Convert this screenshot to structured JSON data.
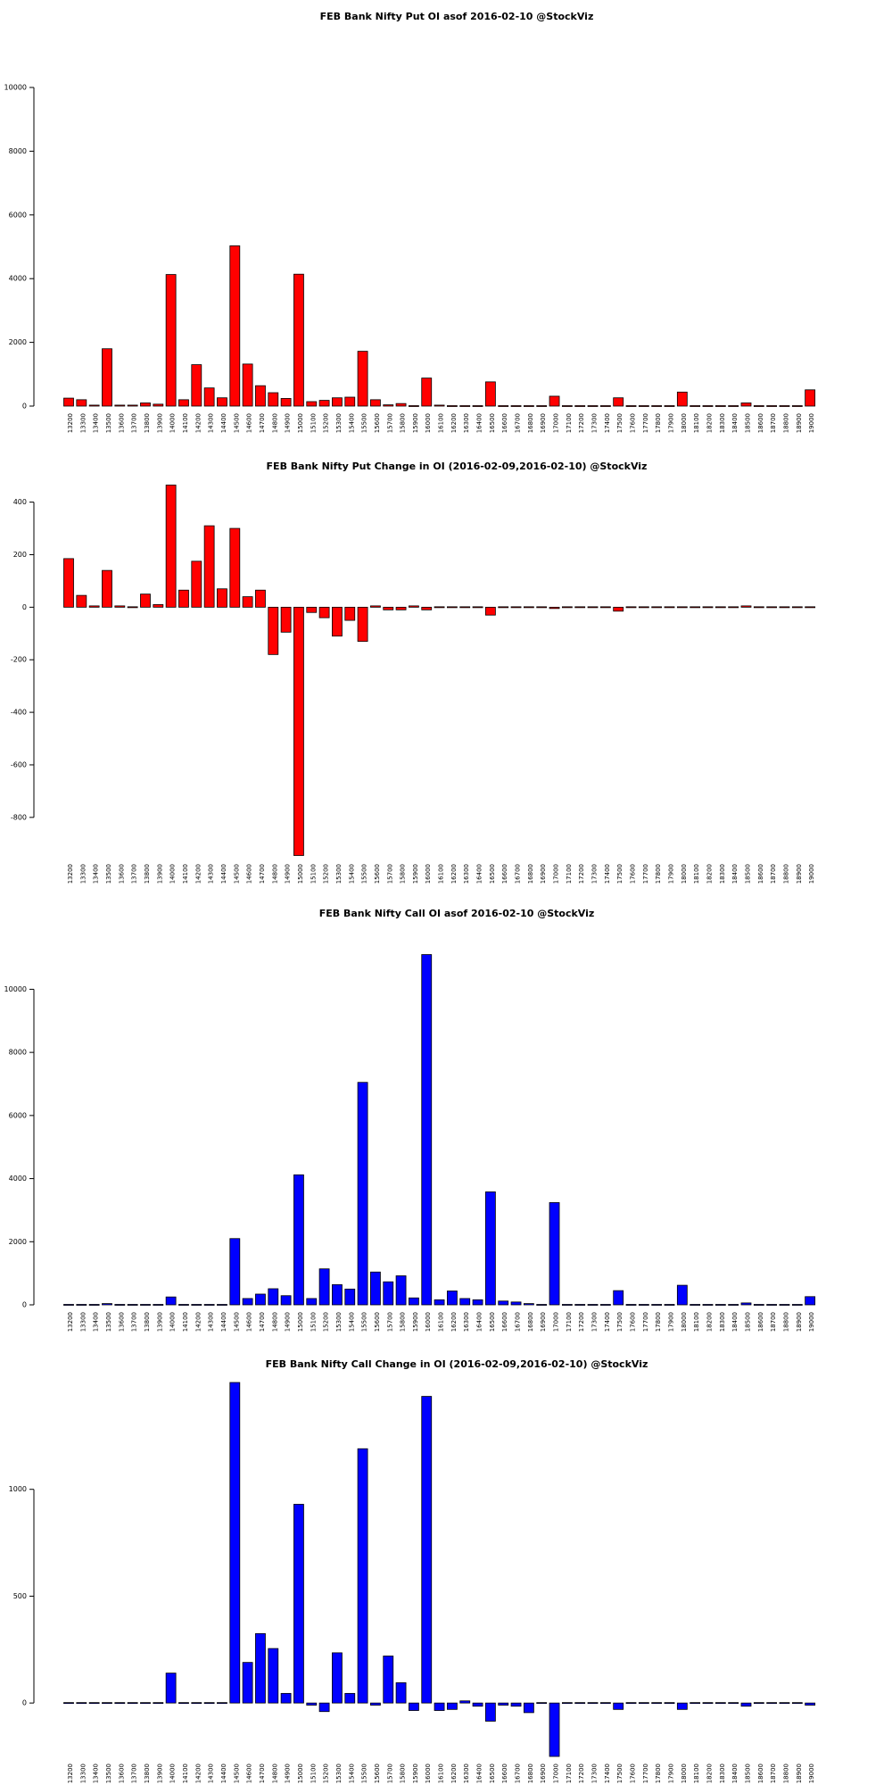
{
  "chart_data": [
    {
      "type": "bar",
      "title": "FEB Bank Nifty Put OI asof 2016-02-10 @StockViz",
      "xlabel": "",
      "ylabel": "",
      "color": "#ff0000",
      "ylim": [
        0,
        10000
      ],
      "yticks": [
        0,
        2000,
        4000,
        6000,
        8000,
        10000
      ],
      "categories": [
        "13200",
        "13300",
        "13400",
        "13500",
        "13600",
        "13700",
        "13800",
        "13900",
        "14000",
        "14100",
        "14200",
        "14300",
        "14400",
        "14500",
        "14600",
        "14700",
        "14800",
        "14900",
        "15000",
        "15100",
        "15200",
        "15300",
        "15400",
        "15500",
        "15600",
        "15700",
        "15800",
        "15900",
        "16000",
        "16100",
        "16200",
        "16300",
        "16400",
        "16500",
        "16600",
        "16700",
        "16800",
        "16900",
        "17000",
        "17100",
        "17200",
        "17300",
        "17400",
        "17500",
        "17600",
        "17700",
        "17800",
        "17900",
        "18000",
        "18100",
        "18200",
        "18300",
        "18400",
        "18500",
        "18600",
        "18700",
        "18800",
        "18900",
        "19000"
      ],
      "values": [
        250,
        200,
        30,
        1800,
        30,
        30,
        100,
        60,
        4130,
        200,
        1300,
        570,
        260,
        5030,
        1320,
        640,
        420,
        240,
        4140,
        140,
        180,
        260,
        280,
        1720,
        200,
        40,
        80,
        20,
        880,
        30,
        20,
        20,
        20,
        760,
        20,
        10,
        20,
        10,
        310,
        10,
        10,
        10,
        10,
        260,
        10,
        10,
        10,
        10,
        440,
        10,
        10,
        10,
        10,
        100,
        10,
        10,
        10,
        10,
        510
      ]
    },
    {
      "type": "bar",
      "title": "FEB Bank Nifty Put Change in OI (2016-02-09,2016-02-10) @StockViz",
      "xlabel": "",
      "ylabel": "",
      "color": "#ff0000",
      "ylim": [
        -950,
        470
      ],
      "yticks": [
        -800,
        -600,
        -400,
        -200,
        0,
        200,
        400
      ],
      "categories": [
        "13200",
        "13300",
        "13400",
        "13500",
        "13600",
        "13700",
        "13800",
        "13900",
        "14000",
        "14100",
        "14200",
        "14300",
        "14400",
        "14500",
        "14600",
        "14700",
        "14800",
        "14900",
        "15000",
        "15100",
        "15200",
        "15300",
        "15400",
        "15500",
        "15600",
        "15700",
        "15800",
        "15900",
        "16000",
        "16100",
        "16200",
        "16300",
        "16400",
        "16500",
        "16600",
        "16700",
        "16800",
        "16900",
        "17000",
        "17100",
        "17200",
        "17300",
        "17400",
        "17500",
        "17600",
        "17700",
        "17800",
        "17900",
        "18000",
        "18100",
        "18200",
        "18300",
        "18400",
        "18500",
        "18600",
        "18700",
        "18800",
        "18900",
        "19000"
      ],
      "values": [
        185,
        45,
        5,
        140,
        5,
        0,
        50,
        10,
        465,
        65,
        175,
        310,
        70,
        300,
        40,
        65,
        -180,
        -95,
        -945,
        -20,
        -40,
        -110,
        -50,
        -130,
        5,
        -10,
        -10,
        5,
        -10,
        0,
        0,
        0,
        0,
        -30,
        0,
        0,
        0,
        0,
        -5,
        0,
        0,
        0,
        0,
        -15,
        0,
        0,
        0,
        0,
        0,
        0,
        0,
        0,
        0,
        5,
        0,
        0,
        0,
        0,
        0
      ]
    },
    {
      "type": "bar",
      "title": "FEB Bank Nifty Call OI asof 2016-02-10 @StockViz",
      "xlabel": "",
      "ylabel": "",
      "color": "#0000ff",
      "ylim": [
        0,
        11200
      ],
      "yticks": [
        0,
        2000,
        4000,
        6000,
        8000,
        10000
      ],
      "categories": [
        "13200",
        "13300",
        "13400",
        "13500",
        "13600",
        "13700",
        "13800",
        "13900",
        "14000",
        "14100",
        "14200",
        "14300",
        "14400",
        "14500",
        "14600",
        "14700",
        "14800",
        "14900",
        "15000",
        "15100",
        "15200",
        "15300",
        "15400",
        "15500",
        "15600",
        "15700",
        "15800",
        "15900",
        "16000",
        "16100",
        "16200",
        "16300",
        "16400",
        "16500",
        "16600",
        "16700",
        "16800",
        "16900",
        "17000",
        "17100",
        "17200",
        "17300",
        "17400",
        "17500",
        "17600",
        "17700",
        "17800",
        "17900",
        "18000",
        "18100",
        "18200",
        "18300",
        "18400",
        "18500",
        "18600",
        "18700",
        "18800",
        "18900",
        "19000"
      ],
      "values": [
        10,
        10,
        10,
        40,
        10,
        10,
        10,
        10,
        250,
        10,
        10,
        10,
        10,
        2100,
        200,
        340,
        510,
        290,
        4120,
        200,
        1140,
        640,
        500,
        7050,
        1040,
        730,
        920,
        220,
        11100,
        160,
        440,
        200,
        160,
        3580,
        120,
        90,
        40,
        10,
        3240,
        10,
        10,
        10,
        10,
        450,
        10,
        10,
        10,
        10,
        620,
        10,
        10,
        10,
        10,
        60,
        10,
        10,
        10,
        10,
        260
      ]
    },
    {
      "type": "bar",
      "title": "FEB Bank Nifty Call Change in OI (2016-02-09,2016-02-10) @StockViz",
      "xlabel": "",
      "ylabel": "",
      "color": "#0000ff",
      "ylim": [
        -250,
        1500
      ],
      "yticks": [
        0,
        500,
        1000
      ],
      "categories": [
        "13200",
        "13300",
        "13400",
        "13500",
        "13600",
        "13700",
        "13800",
        "13900",
        "14000",
        "14100",
        "14200",
        "14300",
        "14400",
        "14500",
        "14600",
        "14700",
        "14800",
        "14900",
        "15000",
        "15100",
        "15200",
        "15300",
        "15400",
        "15500",
        "15600",
        "15700",
        "15800",
        "15900",
        "16000",
        "16100",
        "16200",
        "16300",
        "16400",
        "16500",
        "16600",
        "16700",
        "16800",
        "16900",
        "17000",
        "17100",
        "17200",
        "17300",
        "17400",
        "17500",
        "17600",
        "17700",
        "17800",
        "17900",
        "18000",
        "18100",
        "18200",
        "18300",
        "18400",
        "18500",
        "18600",
        "18700",
        "18800",
        "18900",
        "19000"
      ],
      "values": [
        0,
        0,
        0,
        0,
        0,
        0,
        0,
        0,
        140,
        0,
        0,
        0,
        0,
        1500,
        190,
        325,
        255,
        45,
        930,
        -10,
        -40,
        235,
        45,
        1190,
        -10,
        220,
        95,
        -35,
        1435,
        -35,
        -30,
        10,
        -15,
        -85,
        -10,
        -15,
        -45,
        0,
        -250,
        0,
        0,
        0,
        0,
        -30,
        0,
        0,
        0,
        0,
        -30,
        0,
        0,
        0,
        0,
        -15,
        0,
        0,
        0,
        0,
        -10
      ]
    }
  ]
}
